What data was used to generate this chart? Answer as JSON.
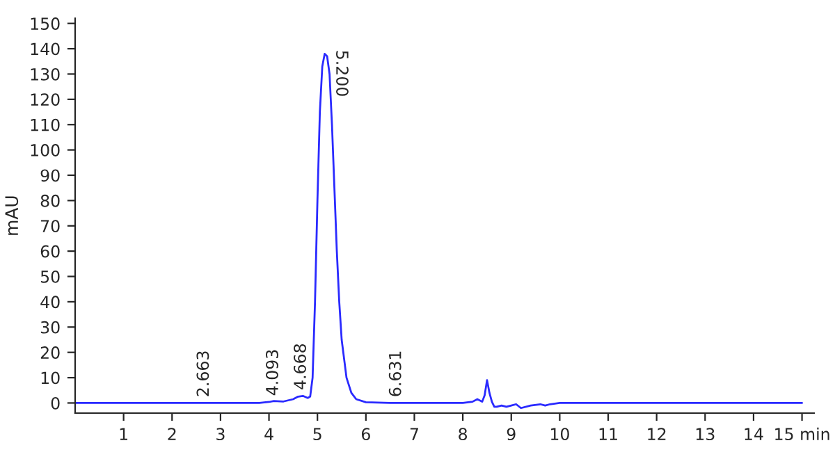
{
  "chart_data": {
    "type": "line",
    "ylabel": "mAU",
    "xlim": [
      0,
      15.25
    ],
    "ylim": [
      -4,
      152
    ],
    "xticks": [
      1,
      2,
      3,
      4,
      5,
      6,
      7,
      8,
      9,
      10,
      11,
      12,
      13,
      14,
      {
        "value": 15,
        "label": "15 min"
      }
    ],
    "yticks": [
      0,
      10,
      20,
      30,
      40,
      50,
      60,
      70,
      80,
      90,
      100,
      110,
      120,
      130,
      140,
      150
    ],
    "grid": false,
    "legend": false,
    "series": [
      {
        "color": "#2a2aff",
        "x": [
          0,
          1,
          2,
          3,
          3.8,
          4.0,
          4.1,
          4.3,
          4.5,
          4.6,
          4.7,
          4.8,
          4.85,
          4.9,
          4.95,
          5.0,
          5.05,
          5.1,
          5.15,
          5.2,
          5.25,
          5.3,
          5.35,
          5.4,
          5.45,
          5.5,
          5.6,
          5.7,
          5.8,
          6.0,
          6.5,
          7,
          8,
          8.2,
          8.3,
          8.4,
          8.45,
          8.5,
          8.55,
          8.6,
          8.65,
          8.7,
          8.8,
          8.9,
          9.0,
          9.1,
          9.2,
          9.4,
          9.6,
          9.7,
          9.8,
          10,
          12,
          15
        ],
        "values": [
          0,
          0,
          0,
          0,
          0,
          0.4,
          0.8,
          0.6,
          1.5,
          2.5,
          2.8,
          2,
          2.5,
          10,
          40,
          80,
          115,
          133,
          138,
          137,
          130,
          110,
          85,
          60,
          40,
          25,
          10,
          4,
          1.5,
          0.3,
          0,
          0,
          0,
          0.5,
          1.5,
          0.5,
          3,
          9,
          4,
          0.5,
          -1.5,
          -1.5,
          -1,
          -1.5,
          -1,
          -0.5,
          -2,
          -1,
          -0.5,
          -1,
          -0.5,
          0,
          0,
          0
        ]
      }
    ],
    "annotations": [
      {
        "text": "2.663",
        "x": 2.663,
        "y": 0
      },
      {
        "text": "4.093",
        "x": 4.093,
        "y": 0.5
      },
      {
        "text": "4.668",
        "x": 4.668,
        "y": 2.8
      },
      {
        "text": "5.200",
        "x": 5.2,
        "y": 138
      },
      {
        "text": "6.631",
        "x": 6.631,
        "y": 0
      }
    ]
  }
}
